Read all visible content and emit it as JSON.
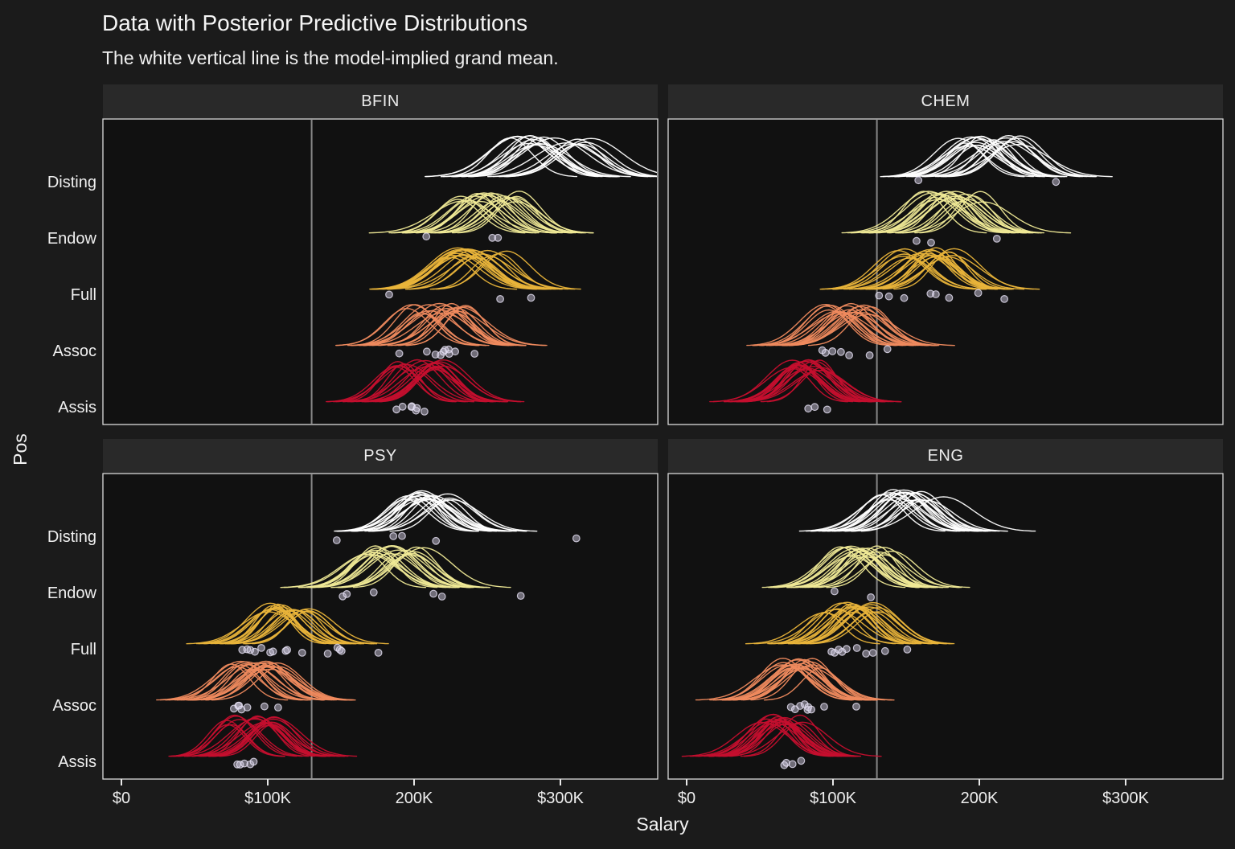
{
  "title": "Data with Posterior Predictive Distributions",
  "subtitle": "The white vertical line is the model-implied grand mean.",
  "axes": {
    "x_label": "Salary",
    "y_label": "Pos",
    "x_ticks": [
      "$0",
      "$100K",
      "200K",
      "$300K"
    ],
    "x_tick_values_k": [
      0,
      100,
      200,
      300
    ],
    "y_categories": [
      "Disting",
      "Endow",
      "Full",
      "Assoc",
      "Assis"
    ]
  },
  "style": {
    "background": "#1b1b1b",
    "panel_background": "#111111",
    "strip_background": "#292929",
    "panel_border": "#dcdcdc",
    "grand_mean_line": "#878787",
    "text": "#f2f2f2",
    "point_fill": "rgba(206,200,222,0.5)",
    "point_stroke": "rgba(233,228,246,0.8)"
  },
  "chart_data": {
    "type": "line",
    "subtype": "posterior-predictive-ridgeline",
    "x_unit": "salary in thousands of dollars",
    "grand_mean_k": 130,
    "draws_per_group": 20,
    "palette": [
      "#ffffff",
      "#efe996",
      "#e9b43a",
      "#ef8a5e",
      "#c50f2e"
    ],
    "facet_grid": [
      "top-left",
      "top-right",
      "bottom-left",
      "bottom-right"
    ],
    "facets": [
      {
        "name": "BFIN",
        "groups": [
          {
            "position": "Disting",
            "mean_k": 292,
            "mean_spread_k": 29,
            "sd_k": 17,
            "data_points_k": []
          },
          {
            "position": "Endow",
            "mean_k": 254,
            "mean_spread_k": 28,
            "sd_k": 16,
            "data_points_k": [
              209,
              254,
              258
            ]
          },
          {
            "position": "Full",
            "mean_k": 243,
            "mean_spread_k": 22,
            "sd_k": 16,
            "data_points_k": [
              183,
              258,
              279
            ]
          },
          {
            "position": "Assoc",
            "mean_k": 215,
            "mean_spread_k": 21,
            "sd_k": 15,
            "data_points_k": [
              189,
              209,
              214,
              218,
              220,
              221,
              223,
              224,
              227,
              241
            ]
          },
          {
            "position": "Assis",
            "mean_k": 204,
            "mean_spread_k": 17,
            "sd_k": 14,
            "data_points_k": [
              188,
              193,
              198,
              199,
              201,
              203,
              208
            ]
          }
        ]
      },
      {
        "name": "CHEM",
        "groups": [
          {
            "position": "Disting",
            "mean_k": 210,
            "mean_spread_k": 25,
            "sd_k": 16,
            "data_points_k": [
              159,
              253
            ]
          },
          {
            "position": "Endow",
            "mean_k": 182,
            "mean_spread_k": 21,
            "sd_k": 15,
            "data_points_k": [
              157,
              166,
              211
            ]
          },
          {
            "position": "Full",
            "mean_k": 162,
            "mean_spread_k": 26,
            "sd_k": 15,
            "data_points_k": [
              132,
              138,
              149,
              166,
              171,
              179,
              199,
              218
            ]
          },
          {
            "position": "Assoc",
            "mean_k": 110,
            "mean_spread_k": 16,
            "sd_k": 15,
            "data_points_k": [
              92,
              95,
              100,
              105,
              112,
              124,
              137
            ]
          },
          {
            "position": "Assis",
            "mean_k": 83,
            "mean_spread_k": 12,
            "sd_k": 14,
            "data_points_k": [
              84,
              87,
              95
            ]
          }
        ]
      },
      {
        "name": "PSY",
        "groups": [
          {
            "position": "Disting",
            "mean_k": 208,
            "mean_spread_k": 19,
            "sd_k": 15,
            "data_points_k": [
              147,
              186,
              191,
              215,
              311
            ]
          },
          {
            "position": "Endow",
            "mean_k": 187,
            "mean_spread_k": 20,
            "sd_k": 15,
            "data_points_k": [
              151,
              153,
              172,
              213,
              218,
              273
            ]
          },
          {
            "position": "Full",
            "mean_k": 115,
            "mean_spread_k": 15,
            "sd_k": 14,
            "data_points_k": [
              82,
              85,
              87,
              91,
              95,
              102,
              103,
              113,
              114,
              124,
              140,
              147,
              149,
              151,
              175
            ]
          },
          {
            "position": "Assoc",
            "mean_k": 91,
            "mean_spread_k": 17,
            "sd_k": 15,
            "data_points_k": [
              77,
              79,
              81,
              83,
              86,
              98,
              108
            ]
          },
          {
            "position": "Assis",
            "mean_k": 88,
            "mean_spread_k": 17,
            "sd_k": 14,
            "data_points_k": [
              80,
              82,
              85,
              87,
              90
            ]
          }
        ]
      },
      {
        "name": "ENG",
        "groups": [
          {
            "position": "Disting",
            "mean_k": 154,
            "mean_spread_k": 22,
            "sd_k": 16,
            "data_points_k": []
          },
          {
            "position": "Endow",
            "mean_k": 123,
            "mean_spread_k": 20,
            "sd_k": 15,
            "data_points_k": [
              102,
              126
            ]
          },
          {
            "position": "Full",
            "mean_k": 112,
            "mean_spread_k": 19,
            "sd_k": 14,
            "data_points_k": [
              98,
              101,
              103,
              107,
              110,
              116,
              122,
              127,
              135,
              150
            ]
          },
          {
            "position": "Assoc",
            "mean_k": 79,
            "mean_spread_k": 14,
            "sd_k": 15,
            "data_points_k": [
              72,
              74,
              78,
              80,
              82,
              83,
              85,
              93,
              115
            ]
          },
          {
            "position": "Assis",
            "mean_k": 65,
            "mean_spread_k": 16,
            "sd_k": 14,
            "data_points_k": [
              66,
              69,
              72,
              78
            ]
          }
        ]
      }
    ]
  }
}
